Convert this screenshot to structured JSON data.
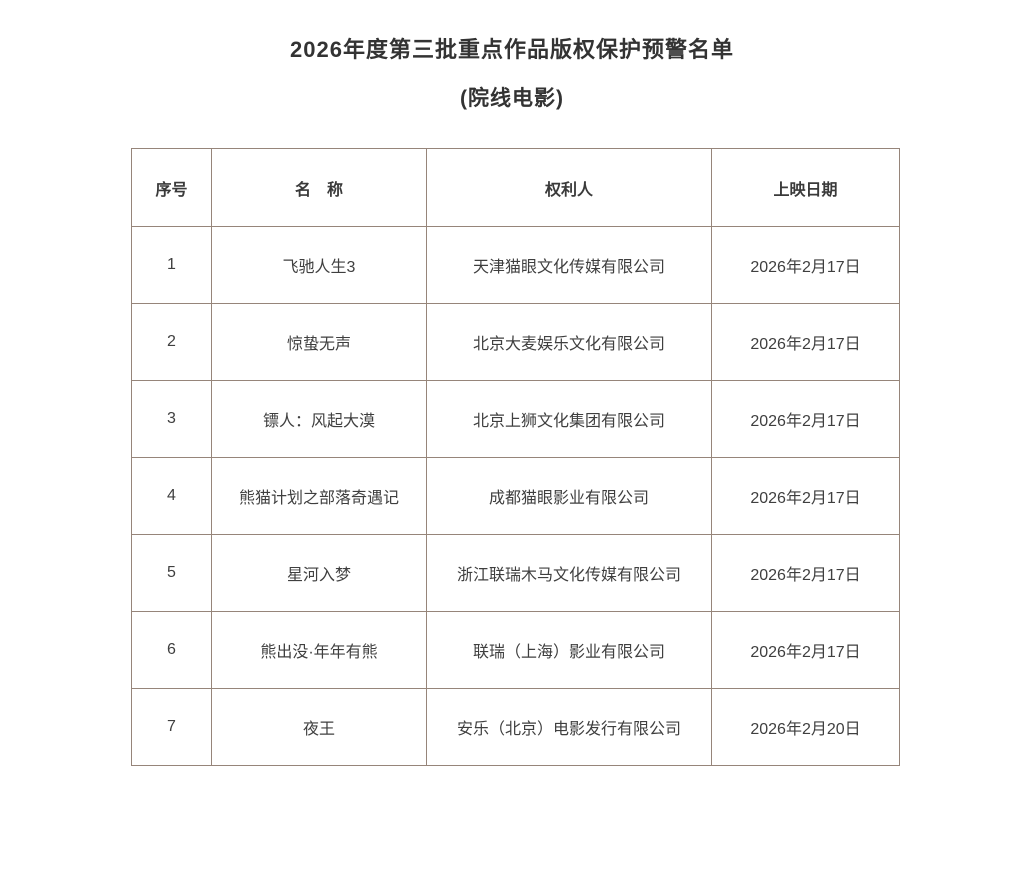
{
  "doc": {
    "title": "2026年度第三批重点作品版权保护预警名单",
    "subtitle": "(院线电影)"
  },
  "table": {
    "border_color": "#96857a",
    "headers": {
      "no": "序号",
      "name": "名　称",
      "rights_holder": "权利人",
      "release_date": "上映日期"
    },
    "rows": [
      {
        "no": "1",
        "name": "飞驰人生3",
        "rights_holder": "天津猫眼文化传媒有限公司",
        "release_date": "2026年2月17日"
      },
      {
        "no": "2",
        "name": "惊蛰无声",
        "rights_holder": "北京大麦娱乐文化有限公司",
        "release_date": "2026年2月17日"
      },
      {
        "no": "3",
        "name": "镖人：风起大漠",
        "rights_holder": "北京上狮文化集团有限公司",
        "release_date": "2026年2月17日"
      },
      {
        "no": "4",
        "name": "熊猫计划之部落奇遇记",
        "rights_holder": "成都猫眼影业有限公司",
        "release_date": "2026年2月17日"
      },
      {
        "no": "5",
        "name": "星河入梦",
        "rights_holder": "浙江联瑞木马文化传媒有限公司",
        "release_date": "2026年2月17日"
      },
      {
        "no": "6",
        "name": "熊出没·年年有熊",
        "rights_holder": "联瑞（上海）影业有限公司",
        "release_date": "2026年2月17日"
      },
      {
        "no": "7",
        "name": "夜王",
        "rights_holder": "安乐（北京）电影发行有限公司",
        "release_date": "2026年2月20日"
      }
    ]
  }
}
